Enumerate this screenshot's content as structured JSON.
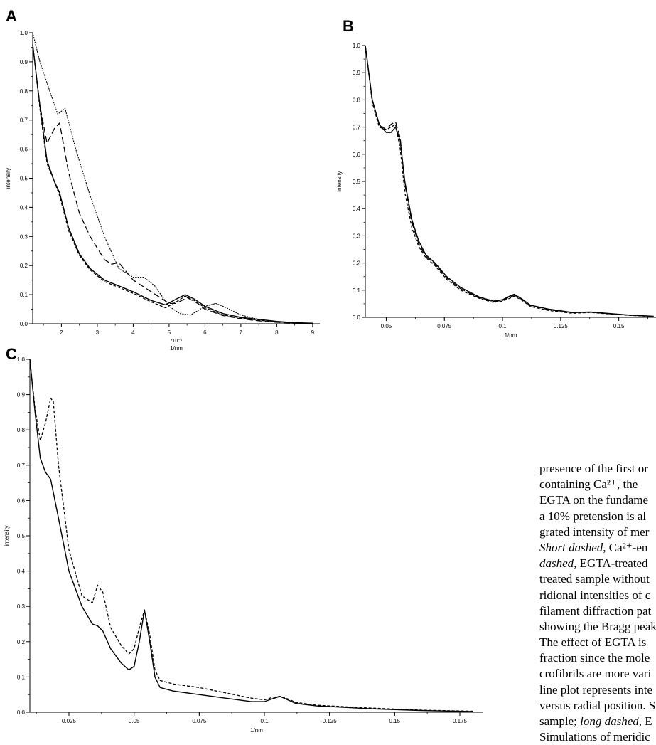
{
  "panels": [
    {
      "id": "A",
      "label": "A",
      "ylabel": "intensity",
      "xlabel": "1/nm",
      "xmultiplier": "*10⁻²",
      "xlim": [
        1.2,
        9.2
      ],
      "ylim": [
        0,
        1.0
      ],
      "xticks": [
        "2",
        "3",
        "4",
        "5",
        "6",
        "7",
        "8",
        "9"
      ],
      "yticks": [
        "0.0",
        "0.1",
        "0.2",
        "0.3",
        "0.4",
        "0.5",
        "0.6",
        "0.7",
        "0.8",
        "0.9",
        "1.0"
      ]
    },
    {
      "id": "B",
      "label": "B",
      "ylabel": "intensity",
      "xlabel": "1/nm",
      "xlim": [
        0.041,
        0.166
      ],
      "ylim": [
        0,
        1.0
      ],
      "xticks": [
        "0.05",
        "0.075",
        "0.1",
        "0.125",
        "0.15"
      ],
      "yticks": [
        "0.0",
        "0.1",
        "0.2",
        "0.3",
        "0.4",
        "0.5",
        "0.6",
        "0.7",
        "0.8",
        "0.9",
        "1.0"
      ]
    },
    {
      "id": "C",
      "label": "C",
      "ylabel": "intensity",
      "xlabel": "1/nm",
      "xlim": [
        0.01,
        0.184
      ],
      "ylim": [
        0,
        1.0
      ],
      "xticks": [
        "0.025",
        "0.05",
        "0.075",
        "0.1",
        "0.125",
        "0.15",
        "0.175"
      ],
      "yticks": [
        "0.0",
        "0.1",
        "0.2",
        "0.3",
        "0.4",
        "0.5",
        "0.6",
        "0.7",
        "0.8",
        "0.9",
        "1.0"
      ]
    }
  ],
  "chart_data": [
    {
      "type": "line",
      "panel": "A",
      "xlabel": "1/nm",
      "ylabel": "intensity",
      "xlim": [
        1.2,
        9.2
      ],
      "ylim": [
        0,
        1.0
      ],
      "series": [
        {
          "style": "solid",
          "x": [
            1.2,
            1.4,
            1.6,
            1.8,
            1.95,
            2.2,
            2.5,
            2.8,
            3.2,
            3.6,
            4.0,
            4.5,
            4.9,
            5.2,
            5.45,
            5.7,
            6.0,
            6.5,
            7.0,
            7.5,
            8.0,
            8.5,
            9.0
          ],
          "y": [
            0.96,
            0.75,
            0.56,
            0.49,
            0.45,
            0.33,
            0.24,
            0.19,
            0.15,
            0.13,
            0.11,
            0.08,
            0.065,
            0.085,
            0.1,
            0.085,
            0.06,
            0.035,
            0.022,
            0.015,
            0.008,
            0.004,
            0.002
          ]
        },
        {
          "style": "short-dashed",
          "x": [
            1.2,
            1.4,
            1.6,
            1.8,
            1.95,
            2.2,
            2.5,
            2.8,
            3.2,
            3.6,
            4.0,
            4.5,
            4.9,
            5.2,
            5.45,
            5.7,
            6.0,
            6.5,
            7.0,
            7.5,
            8.0,
            8.5,
            9.0
          ],
          "y": [
            0.96,
            0.74,
            0.55,
            0.49,
            0.44,
            0.32,
            0.235,
            0.185,
            0.145,
            0.125,
            0.105,
            0.075,
            0.055,
            0.075,
            0.095,
            0.08,
            0.055,
            0.03,
            0.02,
            0.012,
            0.006,
            0.003,
            0.001
          ]
        },
        {
          "style": "long-dashed",
          "x": [
            1.2,
            1.4,
            1.6,
            1.8,
            1.95,
            2.2,
            2.5,
            2.8,
            3.2,
            3.4,
            3.6,
            3.8,
            4.0,
            4.5,
            5.0,
            5.2,
            5.5,
            5.8,
            6.0,
            6.5,
            7.0,
            7.5,
            8.0,
            8.5,
            9.0
          ],
          "y": [
            0.96,
            0.75,
            0.62,
            0.67,
            0.69,
            0.52,
            0.38,
            0.3,
            0.22,
            0.205,
            0.21,
            0.18,
            0.15,
            0.11,
            0.07,
            0.07,
            0.09,
            0.07,
            0.05,
            0.028,
            0.017,
            0.01,
            0.005,
            0.002,
            0.001
          ]
        },
        {
          "style": "dotted",
          "x": [
            1.2,
            1.4,
            1.7,
            1.9,
            2.1,
            2.4,
            2.8,
            3.2,
            3.6,
            4.0,
            4.3,
            4.6,
            5.0,
            5.3,
            5.6,
            6.0,
            6.3,
            6.6,
            7.0,
            7.5,
            8.0,
            8.5,
            9.0
          ],
          "y": [
            1.0,
            0.9,
            0.79,
            0.72,
            0.74,
            0.6,
            0.44,
            0.3,
            0.19,
            0.16,
            0.16,
            0.13,
            0.06,
            0.035,
            0.03,
            0.06,
            0.07,
            0.055,
            0.03,
            0.015,
            0.008,
            0.003,
            0.001
          ]
        }
      ]
    },
    {
      "type": "line",
      "panel": "B",
      "xlabel": "1/nm",
      "ylabel": "intensity",
      "xlim": [
        0.041,
        0.166
      ],
      "ylim": [
        0,
        1.0
      ],
      "series": [
        {
          "style": "solid",
          "x": [
            0.041,
            0.044,
            0.047,
            0.05,
            0.052,
            0.054,
            0.056,
            0.058,
            0.061,
            0.064,
            0.067,
            0.071,
            0.076,
            0.082,
            0.09,
            0.096,
            0.1,
            0.103,
            0.105,
            0.108,
            0.112,
            0.12,
            0.13,
            0.138,
            0.145,
            0.155,
            0.165
          ],
          "y": [
            1.0,
            0.8,
            0.71,
            0.68,
            0.68,
            0.7,
            0.65,
            0.5,
            0.36,
            0.28,
            0.23,
            0.2,
            0.15,
            0.11,
            0.075,
            0.06,
            0.065,
            0.078,
            0.085,
            0.07,
            0.045,
            0.03,
            0.018,
            0.02,
            0.015,
            0.008,
            0.004
          ]
        },
        {
          "style": "short-dashed",
          "x": [
            0.041,
            0.044,
            0.047,
            0.05,
            0.052,
            0.054,
            0.056,
            0.058,
            0.061,
            0.064,
            0.067,
            0.071,
            0.076,
            0.082,
            0.09,
            0.096,
            0.1,
            0.103,
            0.105,
            0.108,
            0.112,
            0.12,
            0.13,
            0.138,
            0.145,
            0.155,
            0.165
          ],
          "y": [
            1.0,
            0.79,
            0.7,
            0.69,
            0.7,
            0.71,
            0.62,
            0.46,
            0.33,
            0.26,
            0.22,
            0.19,
            0.14,
            0.1,
            0.07,
            0.055,
            0.06,
            0.07,
            0.078,
            0.065,
            0.04,
            0.025,
            0.015,
            0.018,
            0.013,
            0.007,
            0.003
          ]
        },
        {
          "style": "long-dashed",
          "x": [
            0.041,
            0.044,
            0.047,
            0.05,
            0.052,
            0.054,
            0.056,
            0.058,
            0.061,
            0.064,
            0.067,
            0.071,
            0.076,
            0.082,
            0.09,
            0.096,
            0.1,
            0.103,
            0.105,
            0.108,
            0.112,
            0.12,
            0.13,
            0.138,
            0.145,
            0.155,
            0.165
          ],
          "y": [
            1.0,
            0.8,
            0.71,
            0.69,
            0.71,
            0.72,
            0.66,
            0.49,
            0.35,
            0.27,
            0.225,
            0.195,
            0.145,
            0.105,
            0.072,
            0.058,
            0.062,
            0.075,
            0.082,
            0.068,
            0.043,
            0.028,
            0.017,
            0.019,
            0.014,
            0.008,
            0.004
          ]
        }
      ]
    },
    {
      "type": "line",
      "panel": "C",
      "xlabel": "1/nm",
      "ylabel": "intensity",
      "xlim": [
        0.01,
        0.184
      ],
      "ylim": [
        0,
        1.0
      ],
      "series": [
        {
          "style": "solid",
          "x": [
            0.01,
            0.012,
            0.014,
            0.016,
            0.018,
            0.021,
            0.025,
            0.03,
            0.034,
            0.036,
            0.038,
            0.041,
            0.045,
            0.048,
            0.05,
            0.052,
            0.054,
            0.056,
            0.058,
            0.06,
            0.065,
            0.075,
            0.085,
            0.095,
            0.1,
            0.103,
            0.106,
            0.109,
            0.112,
            0.12,
            0.14,
            0.16,
            0.18
          ],
          "y": [
            1.0,
            0.85,
            0.72,
            0.68,
            0.66,
            0.55,
            0.4,
            0.3,
            0.25,
            0.245,
            0.23,
            0.18,
            0.14,
            0.12,
            0.13,
            0.2,
            0.29,
            0.2,
            0.1,
            0.07,
            0.06,
            0.05,
            0.04,
            0.03,
            0.03,
            0.038,
            0.045,
            0.035,
            0.025,
            0.018,
            0.01,
            0.005,
            0.002
          ]
        },
        {
          "style": "short-dashed",
          "x": [
            0.01,
            0.012,
            0.014,
            0.016,
            0.018,
            0.019,
            0.021,
            0.025,
            0.03,
            0.034,
            0.036,
            0.038,
            0.041,
            0.045,
            0.048,
            0.05,
            0.052,
            0.054,
            0.056,
            0.058,
            0.06,
            0.065,
            0.075,
            0.085,
            0.095,
            0.1,
            0.103,
            0.106,
            0.109,
            0.112,
            0.12,
            0.14,
            0.16,
            0.18
          ],
          "y": [
            1.0,
            0.86,
            0.77,
            0.82,
            0.89,
            0.88,
            0.7,
            0.46,
            0.33,
            0.31,
            0.36,
            0.34,
            0.24,
            0.19,
            0.165,
            0.18,
            0.24,
            0.29,
            0.22,
            0.12,
            0.09,
            0.08,
            0.07,
            0.055,
            0.04,
            0.035,
            0.042,
            0.045,
            0.038,
            0.028,
            0.02,
            0.012,
            0.006,
            0.003
          ]
        }
      ]
    }
  ],
  "caption_lines": [
    "presence of the first or",
    "containing Ca²⁺,  the",
    "EGTA on the fundame",
    "a 10% pretension is al",
    "grated intensity of mer",
    "Short dashed, Ca²⁺-en",
    "dashed, EGTA-treated",
    "treated sample without",
    "ridional intensities of c",
    "filament diffraction pat",
    "showing the Bragg peak",
    "The effect of EGTA is",
    "fraction since the mole",
    "crofibrils are more vari",
    "line plot represents inte",
    "versus radial position. S",
    "sample; long dashed, E",
    "Simulations of meridic"
  ],
  "caption_italic": {
    "5": "Short dashed",
    "6": "dashed",
    "16": "long dashed"
  }
}
